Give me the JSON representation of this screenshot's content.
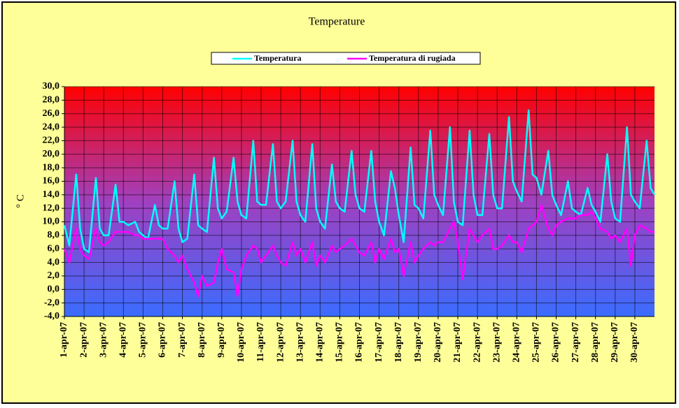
{
  "chart_data": {
    "type": "line",
    "title": "Temperature",
    "ylabel": "° C",
    "x": [
      0,
      0.25,
      0.6,
      0.8,
      1,
      1.25,
      1.6,
      1.8,
      2,
      2.25,
      2.6,
      2.8,
      3,
      3.25,
      3.6,
      3.8,
      4,
      4.25,
      4.6,
      4.8,
      5,
      5.25,
      5.6,
      5.8,
      6,
      6.25,
      6.6,
      6.8,
      7,
      7.25,
      7.6,
      7.8,
      8,
      8.25,
      8.6,
      8.8,
      9,
      9.25,
      9.6,
      9.8,
      10,
      10.25,
      10.6,
      10.8,
      11,
      11.25,
      11.6,
      11.8,
      12,
      12.25,
      12.6,
      12.8,
      13,
      13.25,
      13.6,
      13.8,
      14,
      14.25,
      14.6,
      14.8,
      15,
      15.25,
      15.6,
      15.8,
      16,
      16.25,
      16.6,
      16.8,
      17,
      17.25,
      17.6,
      17.8,
      18,
      18.25,
      18.6,
      18.8,
      19,
      19.25,
      19.6,
      19.8,
      20,
      20.25,
      20.6,
      20.8,
      21,
      21.25,
      21.6,
      21.8,
      22,
      22.25,
      22.6,
      22.8,
      23,
      23.25,
      23.6,
      23.8,
      24,
      24.25,
      24.6,
      24.8,
      25,
      25.25,
      25.6,
      25.8,
      26,
      26.25,
      26.6,
      26.8,
      27,
      27.25,
      27.6,
      27.8,
      28,
      28.25,
      28.6,
      28.8,
      29,
      29.25,
      29.6,
      29.8,
      30
    ],
    "series": [
      {
        "name": "Temperatura",
        "color": "#00ffff",
        "values": [
          9.5,
          6.5,
          17,
          9,
          6,
          5.5,
          16.5,
          9,
          8,
          8,
          15.5,
          10,
          10,
          9.5,
          10,
          8.5,
          8,
          7.5,
          12.5,
          9.5,
          9,
          9,
          16,
          9,
          7,
          7.5,
          17,
          9.5,
          9,
          8.5,
          19.5,
          12,
          10.5,
          11.5,
          19.5,
          13,
          11,
          10.5,
          22,
          13,
          12.5,
          12.5,
          21.5,
          13,
          12,
          13,
          22,
          13,
          11,
          10,
          21.5,
          12,
          10,
          9,
          18.5,
          13,
          12,
          11.5,
          20.5,
          14,
          12,
          11.5,
          20.5,
          13,
          10,
          8,
          17.5,
          15,
          11,
          7,
          21,
          12.5,
          12,
          10.5,
          23.5,
          14,
          12.5,
          11,
          24,
          13,
          10,
          9.5,
          23.5,
          14,
          11,
          11,
          23,
          14,
          12,
          12,
          25.5,
          16,
          14.5,
          13,
          26.5,
          17,
          16.5,
          14,
          20.5,
          14,
          12.5,
          11,
          16,
          12,
          11.5,
          11,
          15,
          12.5,
          11.5,
          10,
          20,
          13,
          10.5,
          10,
          24,
          14,
          13,
          12,
          22,
          15,
          14
        ]
      },
      {
        "name": "Temperatura di rugiada",
        "color": "#ff00ff",
        "values": [
          6,
          4,
          9,
          6,
          5,
          4.5,
          9,
          7,
          6.5,
          7,
          8.5,
          8.5,
          8.5,
          8.5,
          8,
          8,
          7.5,
          7.5,
          7.5,
          7.5,
          7.5,
          6,
          5,
          4,
          5,
          3,
          1,
          -1,
          2,
          0.5,
          1,
          4,
          6,
          3,
          2.5,
          -1,
          3,
          5,
          6.5,
          6,
          4,
          5,
          6.5,
          5,
          4,
          3.5,
          7,
          5,
          6,
          4,
          7,
          3.5,
          5,
          4,
          6.5,
          5.5,
          6,
          6.5,
          7.5,
          6.5,
          5.5,
          5,
          7,
          4,
          6,
          4.5,
          7.5,
          5.5,
          6,
          2,
          7,
          4,
          5,
          6,
          7,
          6.5,
          7,
          7,
          9,
          10,
          7,
          1.5,
          9,
          8,
          7,
          8,
          9,
          6,
          6,
          6.5,
          8,
          7,
          7,
          5.5,
          9,
          9.5,
          10,
          12.5,
          9,
          8,
          9.5,
          10,
          10.5,
          10.5,
          10.5,
          11,
          11,
          11.5,
          10.5,
          9,
          8.5,
          7.5,
          8,
          7,
          9,
          3.5,
          8,
          9.5,
          9,
          8.5,
          8.5
        ]
      }
    ],
    "xlim": [
      0,
      30
    ],
    "xticks": [
      {
        "value": 0,
        "label": "1-apr-07"
      },
      {
        "value": 1,
        "label": "2-apr-07"
      },
      {
        "value": 2,
        "label": "3-apr-07"
      },
      {
        "value": 3,
        "label": "4-apr-07"
      },
      {
        "value": 4,
        "label": "5-apr-07"
      },
      {
        "value": 5,
        "label": "6-apr-07"
      },
      {
        "value": 6,
        "label": "7-apr-07"
      },
      {
        "value": 7,
        "label": "8-apr-07"
      },
      {
        "value": 8,
        "label": "9-apr-07"
      },
      {
        "value": 9,
        "label": "10-apr-07"
      },
      {
        "value": 10,
        "label": "11-apr-07"
      },
      {
        "value": 11,
        "label": "12-apr-07"
      },
      {
        "value": 12,
        "label": "13-apr-07"
      },
      {
        "value": 13,
        "label": "14-apr-07"
      },
      {
        "value": 14,
        "label": "15-apr-07"
      },
      {
        "value": 15,
        "label": "16-apr-07"
      },
      {
        "value": 16,
        "label": "17-apr-07"
      },
      {
        "value": 17,
        "label": "18-apr-07"
      },
      {
        "value": 18,
        "label": "19-apr-07"
      },
      {
        "value": 19,
        "label": "20-apr-07"
      },
      {
        "value": 20,
        "label": "21-apr-07"
      },
      {
        "value": 21,
        "label": "22-apr-07"
      },
      {
        "value": 22,
        "label": "23-apr-07"
      },
      {
        "value": 23,
        "label": "24-apr-07"
      },
      {
        "value": 24,
        "label": "25-apr-07"
      },
      {
        "value": 25,
        "label": "26-apr-07"
      },
      {
        "value": 26,
        "label": "27-apr-07"
      },
      {
        "value": 27,
        "label": "28-apr-07"
      },
      {
        "value": 28,
        "label": "29-apr-07"
      },
      {
        "value": 29,
        "label": "30-apr-07"
      }
    ],
    "ylim": [
      -4,
      30
    ],
    "yticks": [
      {
        "value": -4,
        "label": "-4,0"
      },
      {
        "value": -2,
        "label": "-2,0"
      },
      {
        "value": 0,
        "label": "0,0"
      },
      {
        "value": 2,
        "label": "2,0"
      },
      {
        "value": 4,
        "label": "4,0"
      },
      {
        "value": 6,
        "label": "6,0"
      },
      {
        "value": 8,
        "label": "8,0"
      },
      {
        "value": 10,
        "label": "10,0"
      },
      {
        "value": 12,
        "label": "12,0"
      },
      {
        "value": 14,
        "label": "14,0"
      },
      {
        "value": 16,
        "label": "16,0"
      },
      {
        "value": 18,
        "label": "18,0"
      },
      {
        "value": 20,
        "label": "20,0"
      },
      {
        "value": 22,
        "label": "22,0"
      },
      {
        "value": 24,
        "label": "24,0"
      },
      {
        "value": 26,
        "label": "26,0"
      },
      {
        "value": 28,
        "label": "28,0"
      },
      {
        "value": 30,
        "label": "30,0"
      }
    ],
    "grid": true,
    "legend": "top"
  }
}
